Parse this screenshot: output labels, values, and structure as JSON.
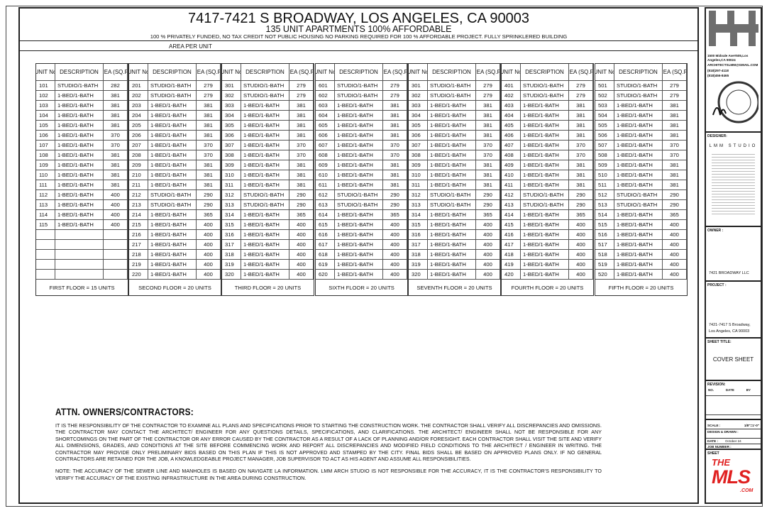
{
  "header": {
    "title": "7417-7421 S BROADWAY, LOS ANGELES, CA 90003",
    "subtitle": "135 UNIT APARTMENTS  100% AFFORDABLE",
    "note": "100 % PRIVATELY FUNDED, NO TAX CREDIT NOT PUBLIC HOUSING NO PARKING REQUIRED FOR 100 % AFFORDABLE PROJECT. FULLY SPRINKLERED BUILDING",
    "section": "AREA PER UNIT"
  },
  "columns": {
    "unit": "UNIT No",
    "description": "DESCRIPTION",
    "area": "AREA (SQ.FT.)"
  },
  "floors": [
    {
      "label": "FIRST FLOOR = 15 UNITS",
      "units": [
        [
          "101",
          "STUDIO/1-BATH",
          "282"
        ],
        [
          "102",
          "1-BED/1-BATH",
          "381"
        ],
        [
          "103",
          "1-BED/1-BATH",
          "381"
        ],
        [
          "104",
          "1-BED/1-BATH",
          "381"
        ],
        [
          "105",
          "1-BED/1-BATH",
          "381"
        ],
        [
          "106",
          "1-BED/1-BATH",
          "370"
        ],
        [
          "107",
          "1-BED/1-BATH",
          "370"
        ],
        [
          "108",
          "1-BED/1-BATH",
          "381"
        ],
        [
          "109",
          "1-BED/1-BATH",
          "381"
        ],
        [
          "110",
          "1-BED/1-BATH",
          "381"
        ],
        [
          "111",
          "1-BED/1-BATH",
          "381"
        ],
        [
          "112",
          "1-BED/1-BATH",
          "400"
        ],
        [
          "113",
          "1-BED/1-BATH",
          "400"
        ],
        [
          "114",
          "1-BED/1-BATH",
          "400"
        ],
        [
          "115",
          "1-BED/1-BATH",
          "400"
        ]
      ]
    },
    {
      "label": "SECOND FLOOR = 20 UNITS",
      "units": [
        [
          "201",
          "STUDIO/1-BATH",
          "279"
        ],
        [
          "202",
          "STUDIO/1-BATH",
          "279"
        ],
        [
          "203",
          "1-BED/1-BATH",
          "381"
        ],
        [
          "204",
          "1-BED/1-BATH",
          "381"
        ],
        [
          "205",
          "1-BED/1-BATH",
          "381"
        ],
        [
          "206",
          "1-BED/1-BATH",
          "381"
        ],
        [
          "207",
          "1-BED/1-BATH",
          "370"
        ],
        [
          "208",
          "1-BED/1-BATH",
          "370"
        ],
        [
          "209",
          "1-BED/1-BATH",
          "381"
        ],
        [
          "210",
          "1-BED/1-BATH",
          "381"
        ],
        [
          "211",
          "1-BED/1-BATH",
          "381"
        ],
        [
          "212",
          "STUDIO/1-BATH",
          "290"
        ],
        [
          "213",
          "STUDIO/1-BATH",
          "290"
        ],
        [
          "214",
          "1-BED/1-BATH",
          "365"
        ],
        [
          "215",
          "1-BED/1-BATH",
          "400"
        ],
        [
          "216",
          "1-BED/1-BATH",
          "400"
        ],
        [
          "217",
          "1-BED/1-BATH",
          "400"
        ],
        [
          "218",
          "1-BED/1-BATH",
          "400"
        ],
        [
          "219",
          "1-BED/1-BATH",
          "400"
        ],
        [
          "220",
          "1-BED/1-BATH",
          "400"
        ]
      ]
    },
    {
      "label": "THIRD FLOOR =  20 UNITS",
      "units": [
        [
          "301",
          "STUDIO/1-BATH",
          "279"
        ],
        [
          "302",
          "STUDIO/1-BATH",
          "279"
        ],
        [
          "303",
          "1-BED/1-BATH",
          "381"
        ],
        [
          "304",
          "1-BED/1-BATH",
          "381"
        ],
        [
          "305",
          "1-BED/1-BATH",
          "381"
        ],
        [
          "306",
          "1-BED/1-BATH",
          "381"
        ],
        [
          "307",
          "1-BED/1-BATH",
          "370"
        ],
        [
          "308",
          "1-BED/1-BATH",
          "370"
        ],
        [
          "309",
          "1-BED/1-BATH",
          "381"
        ],
        [
          "310",
          "1-BED/1-BATH",
          "381"
        ],
        [
          "311",
          "1-BED/1-BATH",
          "381"
        ],
        [
          "312",
          "STUDIO/1-BATH",
          "290"
        ],
        [
          "313",
          "STUDIO/1-BATH",
          "290"
        ],
        [
          "314",
          "1-BED/1-BATH",
          "365"
        ],
        [
          "315",
          "1-BED/1-BATH",
          "400"
        ],
        [
          "316",
          "1-BED/1-BATH",
          "400"
        ],
        [
          "317",
          "1-BED/1-BATH",
          "400"
        ],
        [
          "318",
          "1-BED/1-BATH",
          "400"
        ],
        [
          "319",
          "1-BED/1-BATH",
          "400"
        ],
        [
          "320",
          "1-BED/1-BATH",
          "400"
        ]
      ]
    },
    {
      "label": "SIXTH FLOOR = 20 UNITS",
      "units": [
        [
          "601",
          "STUDIO/1-BATH",
          "279"
        ],
        [
          "602",
          "STUDIO/1-BATH",
          "279"
        ],
        [
          "603",
          "1-BED/1-BATH",
          "381"
        ],
        [
          "604",
          "1-BED/1-BATH",
          "381"
        ],
        [
          "605",
          "1-BED/1-BATH",
          "381"
        ],
        [
          "606",
          "1-BED/1-BATH",
          "381"
        ],
        [
          "607",
          "1-BED/1-BATH",
          "370"
        ],
        [
          "608",
          "1-BED/1-BATH",
          "370"
        ],
        [
          "609",
          "1-BED/1-BATH",
          "381"
        ],
        [
          "610",
          "1-BED/1-BATH",
          "381"
        ],
        [
          "611",
          "1-BED/1-BATH",
          "381"
        ],
        [
          "612",
          "STUDIO/1-BATH",
          "290"
        ],
        [
          "613",
          "STUDIO/1-BATH",
          "290"
        ],
        [
          "614",
          "1-BED/1-BATH",
          "365"
        ],
        [
          "615",
          "1-BED/1-BATH",
          "400"
        ],
        [
          "616",
          "1-BED/1-BATH",
          "400"
        ],
        [
          "617",
          "1-BED/1-BATH",
          "400"
        ],
        [
          "618",
          "1-BED/1-BATH",
          "400"
        ],
        [
          "619",
          "1-BED/1-BATH",
          "400"
        ],
        [
          "620",
          "1-BED/1-BATH",
          "400"
        ]
      ]
    },
    {
      "label": "SEVENTH FLOOR =  20 UNITS",
      "units": [
        [
          "301",
          "STUDIO/1-BATH",
          "279"
        ],
        [
          "302",
          "STUDIO/1-BATH",
          "279"
        ],
        [
          "303",
          "1-BED/1-BATH",
          "381"
        ],
        [
          "304",
          "1-BED/1-BATH",
          "381"
        ],
        [
          "305",
          "1-BED/1-BATH",
          "381"
        ],
        [
          "306",
          "1-BED/1-BATH",
          "381"
        ],
        [
          "307",
          "1-BED/1-BATH",
          "370"
        ],
        [
          "308",
          "1-BED/1-BATH",
          "370"
        ],
        [
          "309",
          "1-BED/1-BATH",
          "381"
        ],
        [
          "310",
          "1-BED/1-BATH",
          "381"
        ],
        [
          "311",
          "1-BED/1-BATH",
          "381"
        ],
        [
          "312",
          "STUDIO/1-BATH",
          "290"
        ],
        [
          "313",
          "STUDIO/1-BATH",
          "290"
        ],
        [
          "314",
          "1-BED/1-BATH",
          "365"
        ],
        [
          "315",
          "1-BED/1-BATH",
          "400"
        ],
        [
          "316",
          "1-BED/1-BATH",
          "400"
        ],
        [
          "317",
          "1-BED/1-BATH",
          "400"
        ],
        [
          "318",
          "1-BED/1-BATH",
          "400"
        ],
        [
          "319",
          "1-BED/1-BATH",
          "400"
        ],
        [
          "320",
          "1-BED/1-BATH",
          "400"
        ]
      ]
    },
    {
      "label": "FOURTH FLOOR = 20 UNITS",
      "units": [
        [
          "401",
          "STUDIO/1-BATH",
          "279"
        ],
        [
          "402",
          "STUDIO/1-BATH",
          "279"
        ],
        [
          "403",
          "1-BED/1-BATH",
          "381"
        ],
        [
          "404",
          "1-BED/1-BATH",
          "381"
        ],
        [
          "405",
          "1-BED/1-BATH",
          "381"
        ],
        [
          "406",
          "1-BED/1-BATH",
          "381"
        ],
        [
          "407",
          "1-BED/1-BATH",
          "370"
        ],
        [
          "408",
          "1-BED/1-BATH",
          "370"
        ],
        [
          "409",
          "1-BED/1-BATH",
          "381"
        ],
        [
          "410",
          "1-BED/1-BATH",
          "381"
        ],
        [
          "411",
          "1-BED/1-BATH",
          "381"
        ],
        [
          "412",
          "STUDIO/1-BATH",
          "290"
        ],
        [
          "413",
          "STUDIO/1-BATH",
          "290"
        ],
        [
          "414",
          "1-BED/1-BATH",
          "365"
        ],
        [
          "415",
          "1-BED/1-BATH",
          "400"
        ],
        [
          "416",
          "1-BED/1-BATH",
          "400"
        ],
        [
          "417",
          "1-BED/1-BATH",
          "400"
        ],
        [
          "418",
          "1-BED/1-BATH",
          "400"
        ],
        [
          "419",
          "1-BED/1-BATH",
          "400"
        ],
        [
          "420",
          "1-BED/1-BATH",
          "400"
        ]
      ]
    },
    {
      "label": "FIFTH FLOOR =  20 UNITS",
      "units": [
        [
          "501",
          "STUDIO/1-BATH",
          "279"
        ],
        [
          "502",
          "STUDIO/1-BATH",
          "279"
        ],
        [
          "503",
          "1-BED/1-BATH",
          "381"
        ],
        [
          "504",
          "1-BED/1-BATH",
          "381"
        ],
        [
          "505",
          "1-BED/1-BATH",
          "381"
        ],
        [
          "506",
          "1-BED/1-BATH",
          "381"
        ],
        [
          "507",
          "1-BED/1-BATH",
          "370"
        ],
        [
          "508",
          "1-BED/1-BATH",
          "370"
        ],
        [
          "509",
          "1-BED/1-BATH",
          "381"
        ],
        [
          "510",
          "1-BED/1-BATH",
          "381"
        ],
        [
          "511",
          "1-BED/1-BATH",
          "381"
        ],
        [
          "512",
          "STUDIO/1-BATH",
          "290"
        ],
        [
          "513",
          "STUDIO/1-BATH",
          "290"
        ],
        [
          "514",
          "1-BED/1-BATH",
          "365"
        ],
        [
          "515",
          "1-BED/1-BATH",
          "400"
        ],
        [
          "516",
          "1-BED/1-BATH",
          "400"
        ],
        [
          "517",
          "1-BED/1-BATH",
          "400"
        ],
        [
          "518",
          "1-BED/1-BATH",
          "400"
        ],
        [
          "519",
          "1-BED/1-BATH",
          "400"
        ],
        [
          "520",
          "1-BED/1-BATH",
          "400"
        ]
      ]
    }
  ],
  "notes": {
    "heading": "ATTN. OWNERS/CONTRACTORS:",
    "p1": "IT IS THE RESPONSIBILITY OF THE CONTRACTOR TO EXAMINE ALL PLANS AND SPECIFICATIONS PRIOR TO STARTING THE CONSTRUCTION WORK. THE CONTRACTOR SHALL VERIFY ALL DISCREPANCIES AND OMISSIONS. THE CONTRACTOR MAY CONTACT THE ARCHITECT/ ENGINEER FOR ANY QUESTIONS DETAILS, SPECIFICATIONS, AND CLARIFICATIONS. THE ARCHITECT/ ENGINEER SHALL NOT BE RESPONSIBLE FOR ANY SHORTCOMINGS ON THE PART OF THE CONTRACTOR OR ANY ERROR CAUSED BY THE CONTRACTOR AS A RESULT OF A LACK OF PLANNING AND/OR FORESIGHT. EACH CONTRACTOR SHALL VISIT THE SITE AND VERIFY ALL DIMENSIONS, GRADES, AND CONDITIONS AT THE SITE BEFORE COMMENCING WORK AND REPORT ALL DISCREPANCIES AND MODIFIED FIELD CONDITIONS TO THE ARCHITECT / ENGINEER IN WRITING. THE CONTRACTOR MAY PROVIDE ONLY PRELIMINARY BIDS BASED ON THIS PLAN IF THIS IS NOT APPROVED AND STAMPED BY THE CITY. FINAL BIDS SHALL BE BASED ON APPROVED PLANS ONLY. IF NO GENERAL CONTRACTORS ARE RETAINED FOR THE JOB, A KNOWLEDGEABLE PROJECT MANAGER, JOB SUPERVISOR TO ACT AS HIS AGENT AND ASSUME ALL RESPONSIBILITIES.",
    "p2": "NOTE: THE ACCURACY OF THE SEWER LINE AND MANHOLES IS BASED ON NAVIGATE LA INFORMATION. LMM ARCH STUDIO IS NOT RESPONSIBLE FOR THE ACCURACY, IT IS THE CONTRACTOR'S RESPONSIBILITY TO VERIFY THE ACCURACY OF THE EXISTING INFRASTRUCTURE IN THE AREA DURING CONSTRUCTION."
  },
  "titleblock": {
    "address": "1500 Midvale Ave#505,Los Angeles,CA 90024",
    "email": "ARCHITECTSLMM@GMAIL.COM",
    "phone1": "(818)297-4118",
    "phone2": "(818)456-8465",
    "designer_label": "DESIGNER:",
    "designer": "LMM STUDIO",
    "owner_label": "OWNER :",
    "owner": "7421 BROADWAY LLC",
    "project_label": "PROJECT :",
    "project_line1": "7421-7417 S Broadway,",
    "project_line2": "Los Angeles, CA 90003",
    "sheet_title_label": "SHEET TITLE:",
    "sheet_title": "COVER SHEET",
    "revision_label": "REVISION:",
    "rev_no": "NO.",
    "rev_date": "DATE",
    "rev_by": "BY",
    "scale_label": "SCALE :",
    "scale": "1/8\"=1'-0\"",
    "drawn_label": "DESIGN & DRAWN :",
    "date_label": "DATE :",
    "date": "October 24",
    "job_label": "JOB NUMBER :",
    "sheet_label": "SHEET",
    "mls_the": "THE",
    "mls": "MLS",
    "mls_com": ".COM"
  },
  "colors": {
    "logo_gray": "#6e6e6e",
    "mls_red": "#e02020"
  }
}
